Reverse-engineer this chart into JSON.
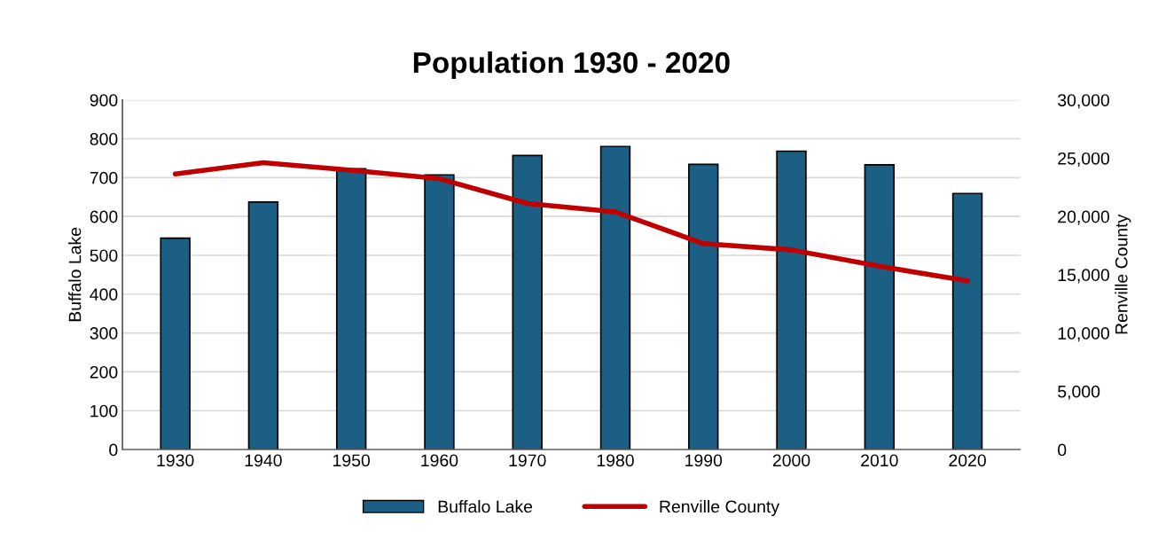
{
  "chart_data": {
    "type": "bar",
    "title": "Population 1930 - 2020",
    "ylabel": "Buffalo Lake",
    "y2label": "Renville County",
    "categories": [
      "1930",
      "1940",
      "1950",
      "1960",
      "1970",
      "1980",
      "1990",
      "2000",
      "2010",
      "2020"
    ],
    "series": [
      {
        "name": "Buffalo Lake",
        "color": "#1b5f85",
        "values": [
          544,
          637,
          723,
          707,
          757,
          780,
          734,
          768,
          733,
          659
        ]
      },
      {
        "name": "Renville County",
        "type": "line",
        "axis": "y2",
        "color": "#c00000",
        "values": [
          23640,
          24610,
          23960,
          23240,
          21110,
          20390,
          17670,
          17130,
          15730,
          14470
        ]
      }
    ],
    "ylim": [
      0,
      900
    ],
    "yticks": [
      0,
      100,
      200,
      300,
      400,
      500,
      600,
      700,
      800,
      900
    ],
    "y2lim": [
      0,
      30000
    ],
    "y2ticks": [
      {
        "value": 0,
        "label": "0"
      },
      {
        "value": 5000,
        "label": "5,000"
      },
      {
        "value": 10000,
        "label": "10,000"
      },
      {
        "value": 15000,
        "label": "15,000"
      },
      {
        "value": 20000,
        "label": "20,000"
      },
      {
        "value": 25000,
        "label": "25,000"
      },
      {
        "value": 30000,
        "label": "30,000"
      }
    ],
    "grid": "y",
    "legend": "bottom",
    "marker": "none",
    "line_style": "solid"
  }
}
